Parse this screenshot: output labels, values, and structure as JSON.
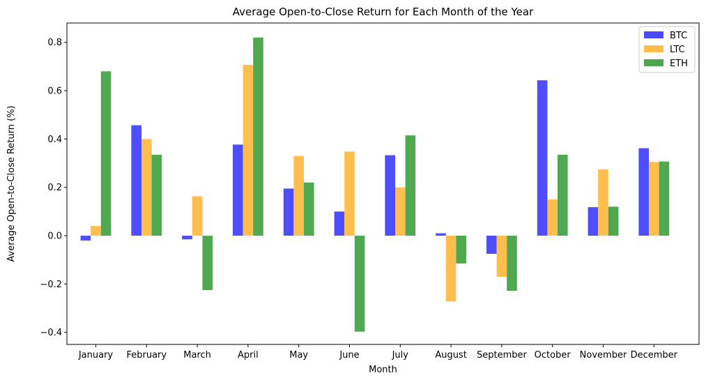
{
  "chart_data": {
    "type": "bar",
    "title": "Average Open-to-Close Return for Each Month of the Year",
    "xlabel": "Month",
    "ylabel": "Average Open-to-Close Return (%)",
    "categories": [
      "January",
      "February",
      "March",
      "April",
      "May",
      "June",
      "July",
      "August",
      "September",
      "October",
      "November",
      "December"
    ],
    "series": [
      {
        "name": "BTC",
        "color": "#4a4aff",
        "values": [
          -0.02,
          0.457,
          -0.015,
          0.377,
          0.195,
          0.1,
          0.333,
          0.01,
          -0.075,
          0.643,
          0.118,
          0.362
        ]
      },
      {
        "name": "LTC",
        "color": "#ffbd4a",
        "values": [
          0.04,
          0.4,
          0.163,
          0.707,
          0.33,
          0.348,
          0.2,
          -0.272,
          -0.17,
          0.15,
          0.275,
          0.305
        ]
      },
      {
        "name": "ETH",
        "color": "#4da64d",
        "values": [
          0.68,
          0.335,
          -0.225,
          0.82,
          0.22,
          -0.397,
          0.415,
          -0.115,
          -0.228,
          0.335,
          0.12,
          0.307
        ]
      }
    ],
    "ylim": [
      -0.45,
      0.88
    ],
    "yticks": [
      -0.4,
      -0.2,
      0.0,
      0.2,
      0.4,
      0.6,
      0.8
    ],
    "ytick_labels": [
      "−0.4",
      "−0.2",
      "0.0",
      "0.2",
      "0.4",
      "0.6",
      "0.8"
    ],
    "grid": false,
    "legend": "top-right"
  }
}
